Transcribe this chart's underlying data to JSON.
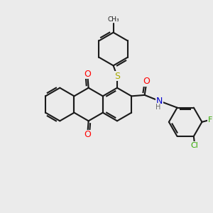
{
  "background_color": "#ebebeb",
  "bond_color": "#1a1a1a",
  "atom_colors": {
    "O": "#ff0000",
    "N": "#0000cc",
    "S": "#aaaa00",
    "F": "#33aa00",
    "Cl": "#33aa00",
    "H": "#666666",
    "C": "#1a1a1a"
  },
  "lw": 1.5,
  "doff": 0.09,
  "figsize": [
    3.0,
    3.0
  ],
  "dpi": 100,
  "xlim": [
    0,
    10
  ],
  "ylim": [
    0,
    10
  ]
}
